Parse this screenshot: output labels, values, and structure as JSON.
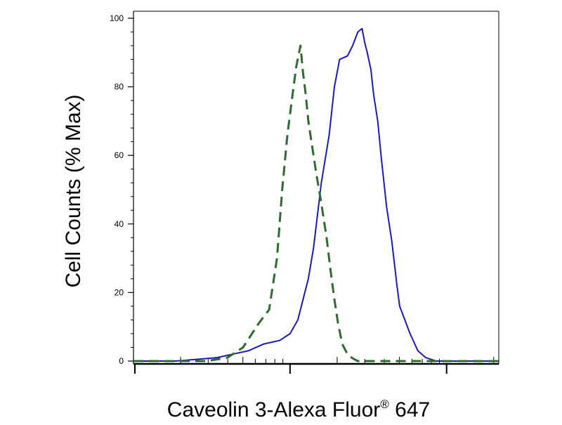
{
  "chart_data": {
    "type": "line",
    "title": "",
    "xlabel": "Caveolin 3-Alexa Fluor",
    "xlabel_sup": "®",
    "xlabel_suffix": " 647",
    "ylabel": "Cell Counts (% Max)",
    "x_scale": "log",
    "xlim": [
      0,
      7
    ],
    "ylim": [
      0,
      100
    ],
    "y_ticks": [
      "0",
      "20",
      "40",
      "60",
      "80",
      "100"
    ],
    "y_tick_values": [
      0,
      20,
      40,
      60,
      80,
      100
    ],
    "grid": false,
    "legend": "none",
    "series": [
      {
        "color": "#1a1ab4",
        "style": "solid",
        "x": [
          0,
          0.8,
          1.2,
          1.6,
          1.9,
          2.2,
          2.5,
          2.8,
          3.0,
          3.15,
          3.25,
          3.35,
          3.45,
          3.6,
          3.75,
          3.85,
          3.95,
          4.1,
          4.2,
          4.3,
          4.38,
          4.43,
          4.48,
          4.55,
          4.6,
          4.68,
          4.75,
          4.85,
          4.95,
          5.05,
          5.1,
          5.2,
          5.3,
          5.45,
          5.6,
          5.7,
          5.8,
          5.92,
          6.05,
          6.2,
          6.4,
          7.0
        ],
        "y": [
          0,
          0,
          0.5,
          1,
          2,
          3,
          5,
          6,
          8,
          12,
          18,
          24,
          33,
          52,
          66,
          80,
          88,
          89,
          92,
          96,
          97,
          93,
          90,
          85,
          78,
          70,
          59,
          45,
          35,
          22,
          16,
          12,
          8,
          3,
          1,
          0.5,
          0,
          0,
          0,
          0,
          0,
          0
        ]
      },
      {
        "color": "#2e6b2e",
        "style": "dashed",
        "x": [
          0,
          1.0,
          1.4,
          1.8,
          2.1,
          2.4,
          2.6,
          2.75,
          2.85,
          2.95,
          3.05,
          3.12,
          3.2,
          3.25,
          3.3,
          3.35,
          3.42,
          3.5,
          3.6,
          3.7,
          3.78,
          3.85,
          3.92,
          4.0,
          4.1,
          4.2,
          4.3,
          4.45,
          4.6,
          4.7,
          4.8,
          5.0,
          7.0
        ],
        "y": [
          0,
          0,
          0,
          1,
          4,
          11,
          15,
          30,
          50,
          66,
          78,
          86,
          92,
          84,
          78,
          70,
          63,
          55,
          46,
          36,
          26,
          18,
          11,
          5,
          2,
          0.8,
          0,
          0,
          0,
          0,
          0,
          0,
          0
        ]
      }
    ]
  }
}
